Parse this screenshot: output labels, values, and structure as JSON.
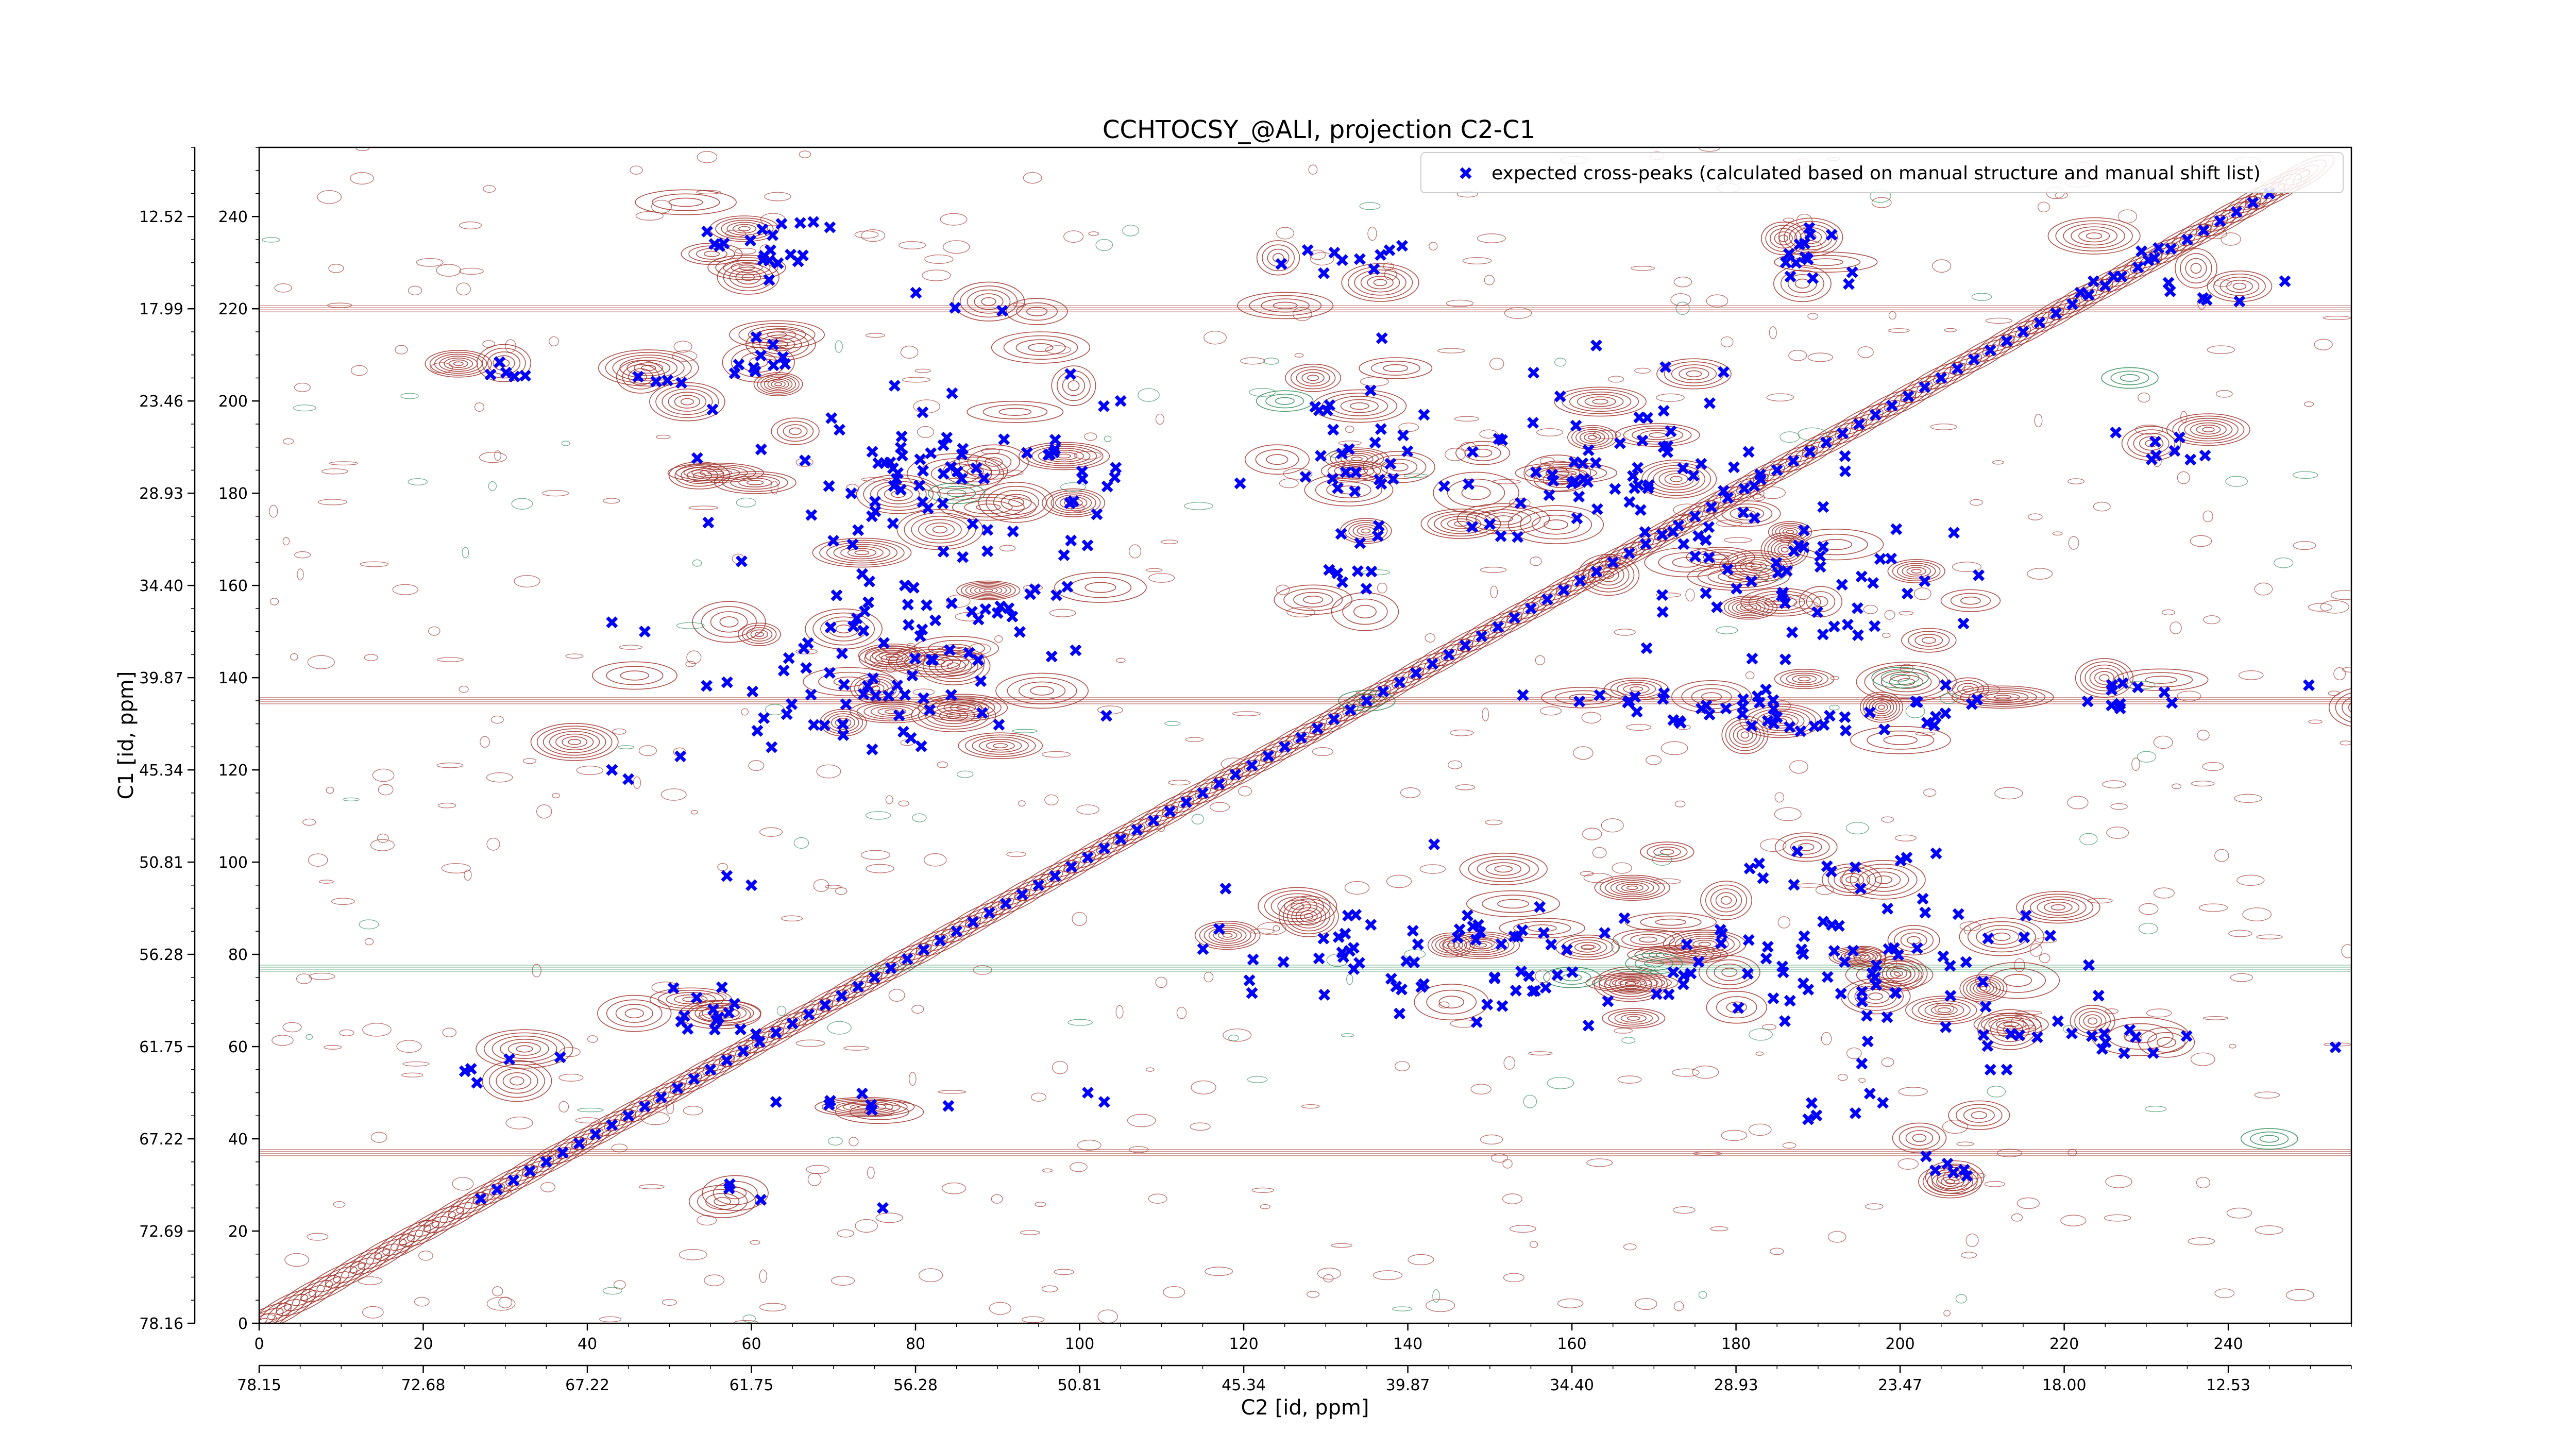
{
  "chart_data": {
    "type": "scatter",
    "title": "CCHTOCSY_@ALI, projection C2-C1",
    "xlabel": "C2 [id, ppm]",
    "ylabel": "C1 [id, ppm]",
    "xlim": [
      0,
      255
    ],
    "ylim": [
      0,
      255
    ],
    "x_index_ticks": [
      "0",
      "20",
      "40",
      "60",
      "80",
      "100",
      "120",
      "140",
      "160",
      "180",
      "200",
      "220",
      "240"
    ],
    "y_index_ticks": [
      "0",
      "20",
      "40",
      "60",
      "80",
      "100",
      "120",
      "140",
      "160",
      "180",
      "200",
      "220",
      "240"
    ],
    "x_ppm_ticks": [
      "78.15",
      "72.68",
      "67.22",
      "61.75",
      "56.28",
      "50.81",
      "45.34",
      "39.87",
      "34.40",
      "28.93",
      "23.47",
      "18.00",
      "12.53"
    ],
    "y_ppm_ticks": [
      "78.16",
      "72.69",
      "67.22",
      "61.75",
      "56.28",
      "50.81",
      "45.34",
      "39.87",
      "34.40",
      "28.93",
      "23.46",
      "17.99",
      "12.52"
    ],
    "grid": false,
    "legend_position": "top-right",
    "colors": {
      "markers": "#0000ff",
      "contour_positive": "#a0332c",
      "contour_negative": "#2e8b57"
    },
    "series": [
      {
        "name": "expected cross-peaks (calculated based on manual structure and manual shift list)",
        "marker": "filled-x",
        "diagonal": {
          "from": 27,
          "to": 245,
          "step": 2
        },
        "clusters": [
          {
            "x": 62,
            "y": 233,
            "sx": 4,
            "sy": 5,
            "n": 20
          },
          {
            "x": 61,
            "y": 210,
            "sx": 3,
            "sy": 4,
            "n": 10
          },
          {
            "x": 30,
            "y": 206,
            "sx": 3,
            "sy": 2,
            "n": 5
          },
          {
            "x": 49,
            "y": 205,
            "sx": 3,
            "sy": 3,
            "n": 4
          },
          {
            "x": 87,
            "y": 220,
            "sx": 4,
            "sy": 2,
            "n": 3
          },
          {
            "x": 78,
            "y": 185,
            "sx": 14,
            "sy": 10,
            "n": 60
          },
          {
            "x": 80,
            "y": 154,
            "sx": 12,
            "sy": 9,
            "n": 45
          },
          {
            "x": 75,
            "y": 135,
            "sx": 14,
            "sy": 6,
            "n": 40
          },
          {
            "x": 102,
            "y": 185,
            "sx": 3,
            "sy": 9,
            "n": 12
          },
          {
            "x": 134,
            "y": 230,
            "sx": 6,
            "sy": 4,
            "n": 10
          },
          {
            "x": 135,
            "y": 188,
            "sx": 7,
            "sy": 12,
            "n": 30
          },
          {
            "x": 133,
            "y": 160,
            "sx": 3,
            "sy": 5,
            "n": 6
          },
          {
            "x": 165,
            "y": 185,
            "sx": 15,
            "sy": 15,
            "n": 70
          },
          {
            "x": 188,
            "y": 160,
            "sx": 12,
            "sy": 10,
            "n": 45
          },
          {
            "x": 188,
            "y": 230,
            "sx": 3,
            "sy": 5,
            "n": 14
          },
          {
            "x": 233,
            "y": 226,
            "sx": 8,
            "sy": 6,
            "n": 12
          },
          {
            "x": 230,
            "y": 190,
            "sx": 5,
            "sy": 3,
            "n": 8
          },
          {
            "x": 185,
            "y": 133,
            "sx": 20,
            "sy": 4,
            "n": 45
          },
          {
            "x": 225,
            "y": 137,
            "sx": 12,
            "sy": 4,
            "n": 12
          },
          {
            "x": 145,
            "y": 80,
            "sx": 16,
            "sy": 9,
            "n": 60
          },
          {
            "x": 188,
            "y": 78,
            "sx": 18,
            "sy": 10,
            "n": 70
          },
          {
            "x": 225,
            "y": 62,
            "sx": 10,
            "sy": 3,
            "n": 18
          },
          {
            "x": 190,
            "y": 100,
            "sx": 12,
            "sy": 3,
            "n": 12
          },
          {
            "x": 206,
            "y": 32,
            "sx": 2,
            "sy": 3,
            "n": 6
          },
          {
            "x": 55,
            "y": 68,
            "sx": 4,
            "sy": 5,
            "n": 14
          },
          {
            "x": 30,
            "y": 58,
            "sx": 3,
            "sy": 3,
            "n": 5
          },
          {
            "x": 75,
            "y": 48,
            "sx": 5,
            "sy": 2,
            "n": 6
          },
          {
            "x": 60,
            "y": 28,
            "sx": 3,
            "sy": 2,
            "n": 3
          },
          {
            "x": 195,
            "y": 45,
            "sx": 8,
            "sy": 3,
            "n": 6
          }
        ],
        "points": [
          [
            43,
            152
          ],
          [
            47,
            150
          ],
          [
            43,
            120
          ],
          [
            45,
            118
          ],
          [
            57,
            97
          ],
          [
            60,
            95
          ],
          [
            63,
            48
          ],
          [
            76,
            25
          ],
          [
            101,
            50
          ],
          [
            103,
            48
          ],
          [
            73,
            172
          ],
          [
            105,
            200
          ],
          [
            211,
            55
          ],
          [
            213,
            55
          ]
        ]
      }
    ]
  }
}
